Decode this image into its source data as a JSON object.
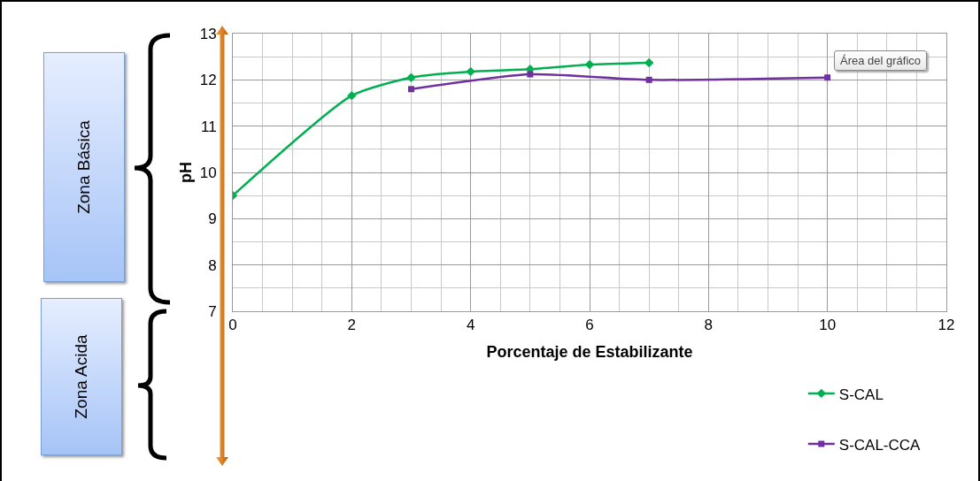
{
  "chart_data": {
    "type": "line",
    "xlabel": "Porcentaje de Estabilizante",
    "ylabel": "pH",
    "xlim": [
      0,
      12
    ],
    "xticks": [
      0,
      2,
      4,
      6,
      8,
      10,
      12
    ],
    "ylim": [
      7,
      13
    ],
    "yticks": [
      7,
      8,
      9,
      10,
      11,
      12,
      13
    ],
    "grid": true,
    "legend": "bottom right",
    "series": [
      {
        "name": "S-CAL",
        "color": "#00b050",
        "marker": "diamond",
        "x": [
          0,
          2,
          3,
          4,
          5,
          6,
          7
        ],
        "values": [
          9.5,
          11.66,
          12.05,
          12.18,
          12.23,
          12.33,
          12.37
        ]
      },
      {
        "name": "S-CAL-CCA",
        "color": "#7030a0",
        "marker": "square",
        "x": [
          3,
          5,
          7,
          10
        ],
        "values": [
          11.8,
          12.12,
          12.0,
          12.05
        ]
      }
    ],
    "annotations": [
      "Zona Básica",
      "Zona Acida",
      "Área del gráfico"
    ]
  }
}
